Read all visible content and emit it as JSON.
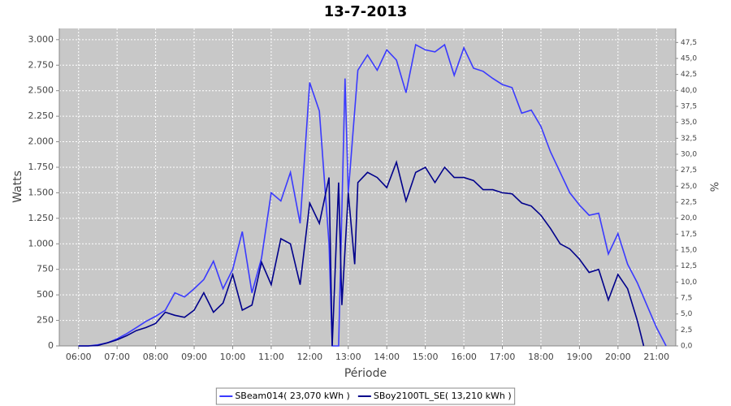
{
  "chart_data": {
    "type": "line",
    "title": "13-7-2013",
    "x_label": "Période",
    "y_label": "Watts",
    "y2_label": "%",
    "xlim": [
      "05:30",
      "21:30"
    ],
    "xticks": [
      "06:00",
      "07:00",
      "08:00",
      "09:00",
      "10:00",
      "11:00",
      "12:00",
      "13:00",
      "14:00",
      "15:00",
      "16:00",
      "17:00",
      "18:00",
      "19:00",
      "20:00",
      "21:00"
    ],
    "ylim": [
      0,
      3110
    ],
    "yticks": [
      0,
      250,
      500,
      750,
      {
        "value": 1000,
        "label": "1.000"
      },
      {
        "value": 1250,
        "label": "1.250"
      },
      {
        "value": 1500,
        "label": "1.500"
      },
      {
        "value": 1750,
        "label": "1.750"
      },
      {
        "value": 2000,
        "label": "2.000"
      },
      {
        "value": 2250,
        "label": "2.250"
      },
      {
        "value": 2500,
        "label": "2.500"
      },
      {
        "value": 2750,
        "label": "2.750"
      },
      {
        "value": 3000,
        "label": "3.000"
      }
    ],
    "y2lim": [
      0,
      49.7
    ],
    "y2ticks": [
      {
        "value": 0,
        "label": "0,0"
      },
      {
        "value": 2.5,
        "label": "2,5"
      },
      {
        "value": 5,
        "label": "5,0"
      },
      {
        "value": 7.5,
        "label": "7,5"
      },
      {
        "value": 10,
        "label": "10,0"
      },
      {
        "value": 12.5,
        "label": "12,5"
      },
      {
        "value": 15,
        "label": "15,0"
      },
      {
        "value": 17.5,
        "label": "17,5"
      },
      {
        "value": 20,
        "label": "20,0"
      },
      {
        "value": 22.5,
        "label": "22,5"
      },
      {
        "value": 25,
        "label": "25,0"
      },
      {
        "value": 27.5,
        "label": "27,5"
      },
      {
        "value": 30,
        "label": "30,0"
      },
      {
        "value": 32.5,
        "label": "32,5"
      },
      {
        "value": 35,
        "label": "35,0"
      },
      {
        "value": 37.5,
        "label": "37,5"
      },
      {
        "value": 40,
        "label": "40,0"
      },
      {
        "value": 42.5,
        "label": "42,5"
      },
      {
        "value": 45,
        "label": "45,0"
      },
      {
        "value": 47.5,
        "label": "47,5"
      }
    ],
    "grid": true,
    "legend": "bottom",
    "series": [
      {
        "name": "SBeam014( 23,070 kWh )",
        "color": "#3a3aff",
        "x": [
          "06:00",
          "06:15",
          "06:30",
          "06:45",
          "07:00",
          "07:15",
          "07:30",
          "07:45",
          "08:00",
          "08:15",
          "08:30",
          "08:45",
          "09:00",
          "09:15",
          "09:30",
          "09:45",
          "10:00",
          "10:15",
          "10:30",
          "10:45",
          "11:00",
          "11:15",
          "11:30",
          "11:45",
          "12:00",
          "12:15",
          "12:30",
          "12:35",
          "12:45",
          "12:55",
          "13:00",
          "13:15",
          "13:30",
          "13:45",
          "14:00",
          "14:15",
          "14:30",
          "14:45",
          "15:00",
          "15:15",
          "15:30",
          "15:45",
          "16:00",
          "16:15",
          "16:30",
          "16:45",
          "17:00",
          "17:15",
          "17:30",
          "17:45",
          "18:00",
          "18:15",
          "18:30",
          "18:45",
          "19:00",
          "19:15",
          "19:30",
          "19:45",
          "20:00",
          "20:15",
          "20:30",
          "20:45",
          "21:00",
          "21:15"
        ],
        "values": [
          0,
          0,
          10,
          30,
          70,
          120,
          180,
          240,
          290,
          350,
          520,
          480,
          560,
          650,
          830,
          560,
          750,
          1120,
          520,
          860,
          1500,
          1420,
          1700,
          1200,
          2580,
          2300,
          1000,
          0,
          0,
          2620,
          1500,
          2700,
          2850,
          2700,
          2900,
          2800,
          2480,
          2950,
          2900,
          2880,
          2950,
          2650,
          2920,
          2720,
          2690,
          2620,
          2560,
          2530,
          2280,
          2310,
          2150,
          1900,
          1700,
          1500,
          1380,
          1280,
          1300,
          900,
          1100,
          800,
          620,
          400,
          180,
          0
        ]
      },
      {
        "name": "SBoy2100TL_SE( 13,210 kWh )",
        "color": "#00008b",
        "x": [
          "06:00",
          "06:15",
          "06:30",
          "06:45",
          "07:00",
          "07:15",
          "07:30",
          "07:45",
          "08:00",
          "08:15",
          "08:30",
          "08:45",
          "09:00",
          "09:15",
          "09:30",
          "09:45",
          "10:00",
          "10:15",
          "10:30",
          "10:45",
          "11:00",
          "11:15",
          "11:30",
          "11:45",
          "12:00",
          "12:15",
          "12:30",
          "12:35",
          "12:45",
          "12:50",
          "13:00",
          "13:10",
          "13:15",
          "13:30",
          "13:45",
          "14:00",
          "14:15",
          "14:30",
          "14:45",
          "15:00",
          "15:15",
          "15:30",
          "15:45",
          "16:00",
          "16:15",
          "16:30",
          "16:45",
          "17:00",
          "17:15",
          "17:30",
          "17:45",
          "18:00",
          "18:15",
          "18:30",
          "18:45",
          "19:00",
          "19:15",
          "19:30",
          "19:45",
          "20:00",
          "20:15",
          "20:30",
          "20:40"
        ],
        "values": [
          0,
          0,
          5,
          30,
          60,
          100,
          150,
          180,
          220,
          330,
          300,
          280,
          350,
          520,
          330,
          420,
          700,
          350,
          400,
          820,
          600,
          1050,
          1000,
          600,
          1400,
          1200,
          1650,
          0,
          1600,
          400,
          1500,
          800,
          1600,
          1700,
          1650,
          1550,
          1800,
          1420,
          1700,
          1750,
          1600,
          1750,
          1650,
          1650,
          1620,
          1530,
          1530,
          1500,
          1490,
          1400,
          1370,
          1280,
          1150,
          1000,
          950,
          850,
          720,
          750,
          450,
          700,
          560,
          250,
          0
        ]
      }
    ]
  }
}
